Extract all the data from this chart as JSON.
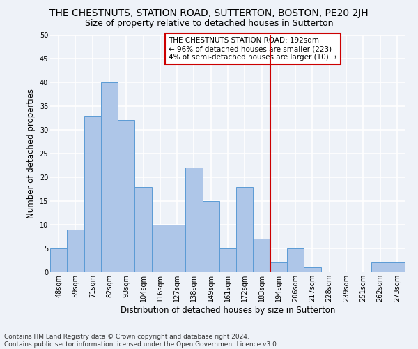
{
  "title": "THE CHESTNUTS, STATION ROAD, SUTTERTON, BOSTON, PE20 2JH",
  "subtitle": "Size of property relative to detached houses in Sutterton",
  "xlabel": "Distribution of detached houses by size in Sutterton",
  "ylabel": "Number of detached properties",
  "categories": [
    "48sqm",
    "59sqm",
    "71sqm",
    "82sqm",
    "93sqm",
    "104sqm",
    "116sqm",
    "127sqm",
    "138sqm",
    "149sqm",
    "161sqm",
    "172sqm",
    "183sqm",
    "194sqm",
    "206sqm",
    "217sqm",
    "228sqm",
    "239sqm",
    "251sqm",
    "262sqm",
    "273sqm"
  ],
  "values": [
    5,
    9,
    33,
    40,
    32,
    18,
    10,
    10,
    22,
    15,
    5,
    18,
    7,
    2,
    5,
    1,
    0,
    0,
    0,
    2,
    2
  ],
  "bar_color": "#aec6e8",
  "bar_edgecolor": "#5b9bd5",
  "vline_x": 12.5,
  "vline_color": "#cc0000",
  "annotation_text": "THE CHESTNUTS STATION ROAD: 192sqm\n← 96% of detached houses are smaller (223)\n4% of semi-detached houses are larger (10) →",
  "annotation_box_color": "#ffffff",
  "annotation_box_edgecolor": "#cc0000",
  "ylim": [
    0,
    50
  ],
  "yticks": [
    0,
    5,
    10,
    15,
    20,
    25,
    30,
    35,
    40,
    45,
    50
  ],
  "footnote": "Contains HM Land Registry data © Crown copyright and database right 2024.\nContains public sector information licensed under the Open Government Licence v3.0.",
  "background_color": "#eef2f8",
  "grid_color": "#ffffff",
  "title_fontsize": 10,
  "subtitle_fontsize": 9,
  "axis_label_fontsize": 8.5,
  "tick_fontsize": 7,
  "footnote_fontsize": 6.5,
  "annotation_fontsize": 7.5
}
